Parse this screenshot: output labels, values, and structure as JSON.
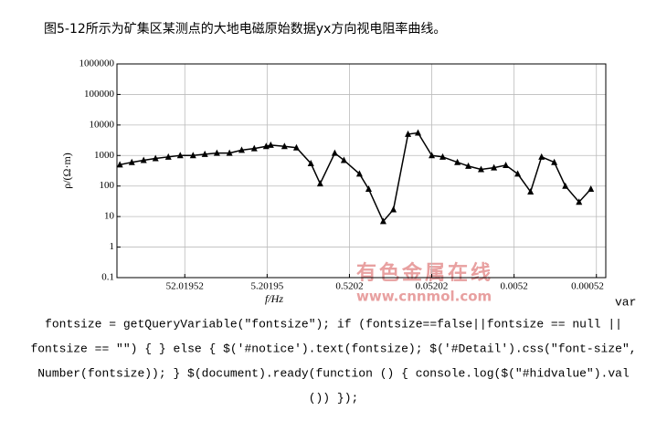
{
  "caption": "图5-12所示为矿集区某测点的大地电磁原始数据yx方向视电阻率曲线。",
  "chart_data": {
    "type": "line",
    "xlabel": "f/Hz",
    "ylabel": "ρ/(Ω·m)",
    "x_log": true,
    "y_log": true,
    "grid": true,
    "color": "#000000",
    "marker": "triangle",
    "xlim": [
      347,
      0.0004
    ],
    "xticks": [
      52.01952,
      5.20195,
      0.5202,
      0.05202,
      0.0052,
      0.00052
    ],
    "ylim": [
      0.1,
      1000000
    ],
    "yticks": [
      0.1,
      1,
      10,
      100,
      1000,
      10000,
      100000,
      1000000
    ],
    "x": [
      320,
      229,
      164.5,
      118,
      82.4,
      59.1,
      41.3,
      29.7,
      21.2,
      14.9,
      10.6,
      7.45,
      5.34,
      4.7,
      3.2,
      2.29,
      1.53,
      1.18,
      0.784,
      0.607,
      0.393,
      0.304,
      0.202,
      0.152,
      0.101,
      0.0764,
      0.052,
      0.0383,
      0.0254,
      0.0187,
      0.0131,
      0.00913,
      0.00655,
      0.0047,
      0.00328,
      0.00241,
      0.00169,
      0.00124,
      0.000845,
      0.000607
    ],
    "values": [
      500,
      600,
      700,
      800,
      900,
      1000,
      1000,
      1100,
      1200,
      1200,
      1500,
      1700,
      2000,
      2200,
      2000,
      1800,
      550,
      120,
      1200,
      700,
      250,
      80,
      7,
      17,
      5000,
      5500,
      1000,
      900,
      600,
      450,
      350,
      400,
      480,
      250,
      65,
      900,
      600,
      100,
      30,
      80
    ]
  },
  "watermark": [
    "有色金属在线",
    "www.cnnmol.com"
  ],
  "code_lines": [
    "var",
    "fontsize = getQueryVariable(\"fontsize\"); if (fontsize==false||fontsize == null ||",
    "fontsize == \"\") { } else { $('#notice').text(fontsize); $('#Detail').css(\"font-size\",",
    "Number(fontsize)); } $(document).ready(function () { console.log($(\"#hidvalue\").val",
    "()) });"
  ]
}
